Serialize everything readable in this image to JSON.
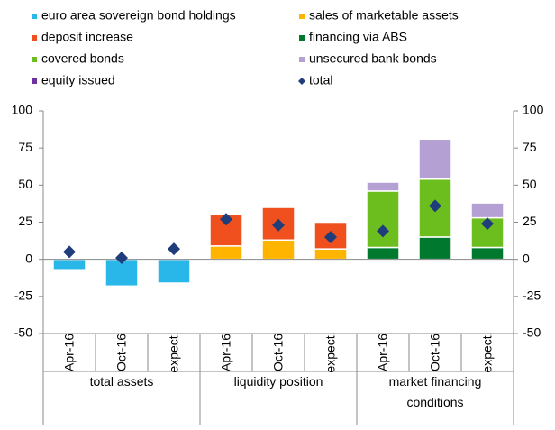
{
  "chart_data": {
    "type": "bar",
    "stacked": true,
    "groups": [
      {
        "name": "total assets",
        "categories": [
          "Apr-16",
          "Oct-16",
          "expect."
        ]
      },
      {
        "name": "liquidity position",
        "categories": [
          "Apr-16",
          "Oct-16",
          "expect."
        ]
      },
      {
        "name": "market financing conditions",
        "categories": [
          "Apr-16",
          "Oct-16",
          "expect."
        ]
      }
    ],
    "series": [
      {
        "name": "euro area sovereign bond holdings",
        "color": "#29b6e8",
        "values": [
          -7,
          -18,
          -16,
          null,
          null,
          null,
          null,
          null,
          null
        ]
      },
      {
        "name": "sales of marketable assets",
        "color": "#ffb400",
        "values": [
          null,
          null,
          null,
          9,
          13,
          7,
          null,
          null,
          null
        ]
      },
      {
        "name": "deposit increase",
        "color": "#f0501e",
        "values": [
          null,
          null,
          null,
          21,
          22,
          18,
          null,
          null,
          null
        ]
      },
      {
        "name": "financing via ABS",
        "color": "#00782d",
        "values": [
          null,
          null,
          null,
          null,
          null,
          null,
          8,
          15,
          8
        ]
      },
      {
        "name": "covered bonds",
        "color": "#6cbe1e",
        "values": [
          null,
          null,
          null,
          null,
          null,
          null,
          38,
          39,
          20
        ]
      },
      {
        "name": "unsecured bank bonds",
        "color": "#b4a0d2",
        "values": [
          null,
          null,
          null,
          null,
          null,
          null,
          6,
          27,
          10
        ]
      },
      {
        "name": "equity issued",
        "color": "#7030a0",
        "values": [
          null,
          null,
          null,
          null,
          null,
          null,
          null,
          null,
          null
        ]
      },
      {
        "name": "total",
        "type": "diamond",
        "color": "#1f3d7a",
        "values": [
          5,
          1,
          7,
          27,
          23,
          15,
          19,
          36,
          24
        ]
      }
    ],
    "ylim": [
      -50,
      100
    ],
    "yticks": [
      -50,
      -25,
      0,
      25,
      50,
      75,
      100
    ],
    "y2lim": [
      -50,
      100
    ],
    "y2ticks": [
      -50,
      -25,
      0,
      25,
      50,
      75,
      100
    ],
    "grid": false
  }
}
